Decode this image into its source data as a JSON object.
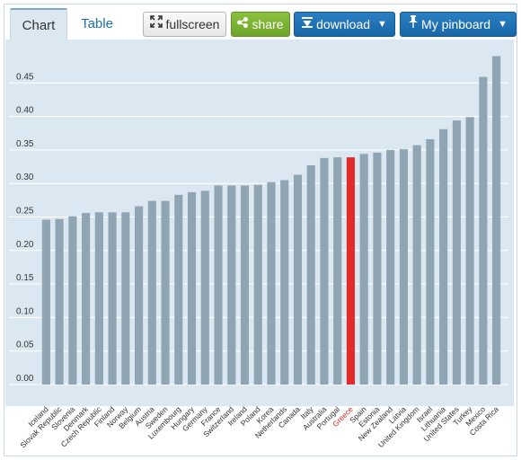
{
  "toolbar": {
    "tab_chart": "Chart",
    "tab_table": "Table",
    "fullscreen_label": "fullscreen",
    "share_label": "share",
    "download_label": "download",
    "pinboard_label": "My pinboard"
  },
  "colors": {
    "bar": "#8fa5b3",
    "highlight": "#e22b2b",
    "plot_bg": "#dce8f1",
    "gridline": "#ffffff"
  },
  "chart_data": {
    "type": "bar",
    "ylim": [
      0,
      0.5
    ],
    "yticks": [
      "0.00",
      "0.05",
      "0.10",
      "0.15",
      "0.20",
      "0.25",
      "0.30",
      "0.35",
      "0.40",
      "0.45"
    ],
    "highlight": "Greece",
    "categories": [
      "Iceland",
      "Slovak Republic",
      "Slovenia",
      "Denmark",
      "Czech Republic",
      "Finland",
      "Norway",
      "Belgium",
      "Austria",
      "Sweden",
      "Luxembourg",
      "Hungary",
      "Germany",
      "France",
      "Switzerland",
      "Ireland",
      "Poland",
      "Korea",
      "Netherlands",
      "Canada",
      "Italy",
      "Australia",
      "Portugal",
      "Greece",
      "Spain",
      "Estonia",
      "New Zealand",
      "Latvia",
      "United Kingdom",
      "Israel",
      "Lithuania",
      "United States",
      "Turkey",
      "Mexico",
      "Costa Rica"
    ],
    "values": [
      0.246,
      0.247,
      0.251,
      0.256,
      0.257,
      0.257,
      0.257,
      0.266,
      0.274,
      0.274,
      0.283,
      0.287,
      0.289,
      0.297,
      0.297,
      0.297,
      0.298,
      0.302,
      0.305,
      0.313,
      0.327,
      0.338,
      0.339,
      0.339,
      0.344,
      0.346,
      0.35,
      0.351,
      0.357,
      0.366,
      0.381,
      0.394,
      0.399,
      0.459,
      0.49
    ]
  }
}
